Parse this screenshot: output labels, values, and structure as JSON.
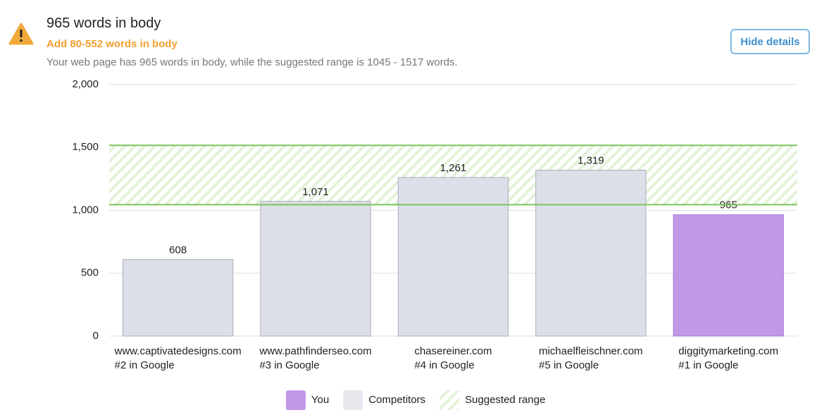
{
  "header": {
    "title": "965 words in body",
    "subtitle": "Add 80-552 words in body",
    "description": "Your web page has 965 words in body, while the suggested range is 1045 - 1517 words.",
    "button": "Hide details"
  },
  "chart_data": {
    "type": "bar",
    "categories": [
      "www.captivatedesigns.com",
      "www.pathfinderseo.com",
      "chasereiner.com",
      "michaelfleischner.com",
      "diggitymarketing.com"
    ],
    "category_subtitles": [
      "#2 in Google",
      "#3 in Google",
      "#4 in Google",
      "#5 in Google",
      "#1 in Google"
    ],
    "values": [
      608,
      1071,
      1261,
      1319,
      965
    ],
    "value_labels": [
      "608",
      "1,071",
      "1,261",
      "1,319",
      "965"
    ],
    "bar_colors": [
      "#dcdfe7",
      "#dcdfe7",
      "#dcdfe7",
      "#dcdfe7",
      "#c397e8"
    ],
    "suggested_range": [
      1045,
      1517
    ],
    "ylim": [
      0,
      2000
    ],
    "yticks": [
      0,
      500,
      {
        "value": 1000,
        "label": "1,000"
      },
      {
        "value": 1500,
        "label": "1,500"
      },
      {
        "value": 2000,
        "label": "2,000"
      }
    ],
    "grid": true,
    "legend": [
      {
        "name": "You",
        "color": "#c397e8"
      },
      {
        "name": "Competitors",
        "color": "#e6e8ee"
      },
      {
        "name": "Suggested range",
        "color": "#7dc35b"
      }
    ]
  }
}
